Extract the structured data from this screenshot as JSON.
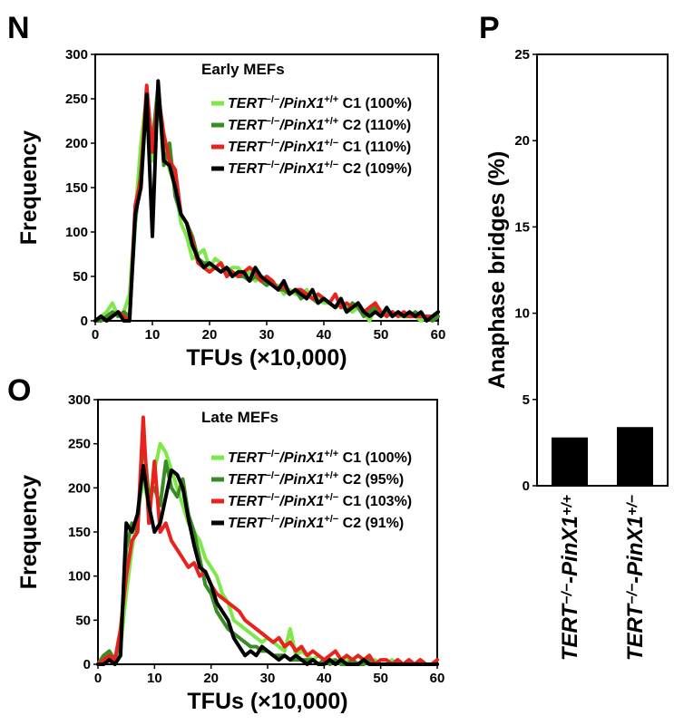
{
  "panels": {
    "N": "N",
    "O": "O",
    "P": "P"
  },
  "chart_data": [
    {
      "panel": "N",
      "type": "line",
      "title": "Early MEFs",
      "xlabel": "TFUs (×10,000)",
      "ylabel": "Frequency",
      "xlim": [
        0,
        60
      ],
      "ylim": [
        0,
        300
      ],
      "xticks": [
        0,
        10,
        20,
        30,
        40,
        50,
        60
      ],
      "yticks": [
        0,
        50,
        100,
        150,
        200,
        250,
        300
      ],
      "legend": "top-right",
      "series": [
        {
          "name": "TERT−/−/PinX1+/+ C1 (100%)",
          "gene1": "TERT",
          "sup1": "−/−",
          "gene2": "/PinX1",
          "sup2": "+/+",
          "rest": " C1 (100%)",
          "color": "#7ee84a",
          "x": [
            0,
            1,
            2,
            3,
            4,
            5,
            6,
            7,
            8,
            9,
            10,
            11,
            12,
            13,
            14,
            15,
            16,
            17,
            18,
            19,
            20,
            21,
            22,
            23,
            24,
            25,
            26,
            27,
            28,
            29,
            30,
            31,
            32,
            33,
            34,
            35,
            36,
            37,
            38,
            39,
            40,
            41,
            42,
            43,
            44,
            45,
            46,
            47,
            48,
            49,
            50,
            51,
            52,
            53,
            54,
            55,
            56,
            57,
            58,
            59,
            60
          ],
          "y": [
            0,
            5,
            10,
            20,
            5,
            10,
            30,
            120,
            200,
            255,
            180,
            260,
            200,
            170,
            150,
            110,
            95,
            70,
            75,
            80,
            60,
            70,
            65,
            55,
            60,
            60,
            50,
            55,
            45,
            50,
            45,
            40,
            40,
            30,
            35,
            30,
            30,
            35,
            25,
            25,
            20,
            20,
            15,
            20,
            15,
            10,
            15,
            10,
            0,
            15,
            10,
            5,
            10,
            5,
            5,
            5,
            5,
            0,
            5,
            0,
            5
          ]
        },
        {
          "name": "TERT−/−/PinX1+/+ C2 (110%)",
          "gene1": "TERT",
          "sup1": "−/−",
          "gene2": "/PinX1",
          "sup2": "+/+",
          "rest": " C2 (110%)",
          "color": "#3a8c26",
          "x": [
            0,
            1,
            2,
            3,
            4,
            5,
            6,
            7,
            8,
            9,
            10,
            11,
            12,
            13,
            14,
            15,
            16,
            17,
            18,
            19,
            20,
            21,
            22,
            23,
            24,
            25,
            26,
            27,
            28,
            29,
            30,
            31,
            32,
            33,
            34,
            35,
            36,
            37,
            38,
            39,
            40,
            41,
            42,
            43,
            44,
            45,
            46,
            47,
            48,
            49,
            50,
            51,
            52,
            53,
            54,
            55,
            56,
            57,
            58,
            59,
            60
          ],
          "y": [
            0,
            0,
            5,
            10,
            5,
            10,
            5,
            110,
            170,
            250,
            200,
            265,
            175,
            200,
            140,
            120,
            110,
            95,
            70,
            65,
            65,
            60,
            55,
            60,
            55,
            50,
            50,
            45,
            50,
            45,
            40,
            45,
            35,
            35,
            30,
            35,
            25,
            30,
            25,
            20,
            25,
            20,
            15,
            20,
            10,
            20,
            15,
            5,
            10,
            15,
            5,
            10,
            5,
            10,
            5,
            5,
            10,
            5,
            5,
            0,
            5
          ]
        },
        {
          "name": "TERT−/−/PinX1+/− C1 (110%)",
          "gene1": "TERT",
          "sup1": "−/−",
          "gene2": "/PinX1",
          "sup2": "+/−",
          "rest": " C1 (110%)",
          "color": "#e8231d",
          "x": [
            0,
            1,
            2,
            3,
            4,
            5,
            6,
            7,
            8,
            9,
            10,
            11,
            12,
            13,
            14,
            15,
            16,
            17,
            18,
            19,
            20,
            21,
            22,
            23,
            24,
            25,
            26,
            27,
            28,
            29,
            30,
            31,
            32,
            33,
            34,
            35,
            36,
            37,
            38,
            39,
            40,
            41,
            42,
            43,
            44,
            45,
            46,
            47,
            48,
            49,
            50,
            51,
            52,
            53,
            54,
            55,
            56,
            57,
            58,
            59,
            60
          ],
          "y": [
            0,
            5,
            0,
            5,
            10,
            5,
            0,
            130,
            160,
            265,
            190,
            255,
            210,
            180,
            170,
            120,
            110,
            90,
            65,
            60,
            55,
            60,
            65,
            50,
            55,
            50,
            55,
            60,
            55,
            45,
            50,
            45,
            35,
            40,
            30,
            35,
            35,
            30,
            25,
            30,
            25,
            20,
            30,
            15,
            20,
            15,
            20,
            10,
            15,
            20,
            10,
            5,
            10,
            5,
            10,
            5,
            5,
            5,
            5,
            5,
            10
          ]
        },
        {
          "name": "TERT−/−/PinX1+/− C2 (109%)",
          "gene1": "TERT",
          "sup1": "−/−",
          "gene2": "/PinX1",
          "sup2": "+/−",
          "rest": " C2 (109%)",
          "color": "#000000",
          "x": [
            0,
            1,
            2,
            3,
            4,
            5,
            6,
            7,
            8,
            9,
            10,
            11,
            12,
            13,
            14,
            15,
            16,
            17,
            18,
            19,
            20,
            21,
            22,
            23,
            24,
            25,
            26,
            27,
            28,
            29,
            30,
            31,
            32,
            33,
            34,
            35,
            36,
            37,
            38,
            39,
            40,
            41,
            42,
            43,
            44,
            45,
            46,
            47,
            48,
            49,
            50,
            51,
            52,
            53,
            54,
            55,
            56,
            57,
            58,
            59,
            60
          ],
          "y": [
            0,
            5,
            0,
            5,
            10,
            0,
            0,
            120,
            150,
            255,
            95,
            270,
            180,
            175,
            150,
            120,
            110,
            85,
            70,
            60,
            65,
            60,
            55,
            60,
            50,
            55,
            55,
            45,
            60,
            50,
            45,
            40,
            35,
            45,
            30,
            35,
            30,
            25,
            35,
            20,
            25,
            20,
            15,
            25,
            10,
            15,
            20,
            10,
            5,
            10,
            5,
            15,
            5,
            10,
            5,
            10,
            5,
            10,
            0,
            5,
            10
          ]
        }
      ]
    },
    {
      "panel": "O",
      "type": "line",
      "title": "Late MEFs",
      "xlabel": "TFUs (×10,000)",
      "ylabel": "Frequency",
      "xlim": [
        0,
        60
      ],
      "ylim": [
        0,
        300
      ],
      "xticks": [
        0,
        10,
        20,
        30,
        40,
        50,
        60
      ],
      "yticks": [
        0,
        50,
        100,
        150,
        200,
        250,
        300
      ],
      "legend": "top-right",
      "series": [
        {
          "name": "TERT−/−/PinX1+/+ C1 (100%)",
          "gene1": "TERT",
          "sup1": "−/−",
          "gene2": "/PinX1",
          "sup2": "+/+",
          "rest": " C1 (100%)",
          "color": "#7ee84a",
          "x": [
            0,
            1,
            2,
            3,
            4,
            5,
            6,
            7,
            8,
            9,
            10,
            11,
            12,
            13,
            14,
            15,
            16,
            17,
            18,
            19,
            20,
            21,
            22,
            23,
            24,
            25,
            26,
            27,
            28,
            29,
            30,
            31,
            32,
            33,
            34,
            35,
            36,
            37,
            38,
            39,
            40,
            41,
            42,
            43,
            44,
            45,
            46,
            47,
            48,
            49,
            50,
            51,
            52,
            53,
            54,
            55,
            56,
            57,
            58,
            59,
            60
          ],
          "y": [
            0,
            10,
            5,
            0,
            20,
            80,
            130,
            170,
            210,
            180,
            220,
            250,
            240,
            220,
            200,
            180,
            160,
            150,
            140,
            120,
            110,
            100,
            80,
            70,
            50,
            45,
            40,
            35,
            30,
            25,
            30,
            25,
            20,
            15,
            40,
            10,
            15,
            10,
            5,
            10,
            5,
            5,
            5,
            0,
            5,
            5,
            0,
            5,
            0,
            5,
            0,
            0,
            5,
            0,
            0,
            0,
            0,
            5,
            0,
            0,
            0
          ]
        },
        {
          "name": "TERT−/−/PinX1+/+ C2 (95%)",
          "gene1": "TERT",
          "sup1": "−/−",
          "gene2": "/PinX1",
          "sup2": "+/+",
          "rest": " C2 (95%)",
          "color": "#3a8c26",
          "x": [
            0,
            1,
            2,
            3,
            4,
            5,
            6,
            7,
            8,
            9,
            10,
            11,
            12,
            13,
            14,
            15,
            16,
            17,
            18,
            19,
            20,
            21,
            22,
            23,
            24,
            25,
            26,
            27,
            28,
            29,
            30,
            31,
            32,
            33,
            34,
            35,
            36,
            37,
            38,
            39,
            40,
            41,
            42,
            43,
            44,
            45,
            46,
            47,
            48,
            49,
            50,
            51,
            52,
            53,
            54,
            55,
            56,
            57,
            58,
            59,
            60
          ],
          "y": [
            0,
            10,
            15,
            5,
            30,
            130,
            160,
            150,
            260,
            190,
            200,
            180,
            230,
            200,
            190,
            210,
            170,
            150,
            120,
            90,
            80,
            60,
            50,
            40,
            35,
            30,
            25,
            20,
            20,
            15,
            15,
            10,
            10,
            10,
            5,
            5,
            5,
            5,
            5,
            0,
            5,
            0,
            5,
            0,
            0,
            5,
            0,
            0,
            5,
            0,
            0,
            0,
            0,
            0,
            0,
            0,
            0,
            0,
            0,
            0,
            0
          ]
        },
        {
          "name": "TERT−/−/PinX1+/− C1 (103%)",
          "gene1": "TERT",
          "sup1": "−/−",
          "gene2": "/PinX1",
          "sup2": "+/−",
          "rest": " C1 (103%)",
          "color": "#e8231d",
          "x": [
            0,
            1,
            2,
            3,
            4,
            5,
            6,
            7,
            8,
            9,
            10,
            11,
            12,
            13,
            14,
            15,
            16,
            17,
            18,
            19,
            20,
            21,
            22,
            23,
            24,
            25,
            26,
            27,
            28,
            29,
            30,
            31,
            32,
            33,
            34,
            35,
            36,
            37,
            38,
            39,
            40,
            41,
            42,
            43,
            44,
            45,
            46,
            47,
            48,
            49,
            50,
            51,
            52,
            53,
            54,
            55,
            56,
            57,
            58,
            59,
            60
          ],
          "y": [
            0,
            5,
            10,
            5,
            40,
            100,
            140,
            150,
            280,
            160,
            230,
            150,
            160,
            140,
            130,
            120,
            110,
            115,
            100,
            105,
            90,
            80,
            75,
            70,
            65,
            60,
            50,
            45,
            40,
            35,
            30,
            25,
            30,
            20,
            25,
            15,
            20,
            10,
            15,
            10,
            5,
            10,
            15,
            5,
            10,
            5,
            10,
            5,
            10,
            0,
            5,
            5,
            0,
            5,
            0,
            5,
            0,
            5,
            0,
            0,
            5
          ]
        },
        {
          "name": "TERT−/−/PinX1+/− C2 (91%)",
          "gene1": "TERT",
          "sup1": "−/−",
          "gene2": "/PinX1",
          "sup2": "+/−",
          "rest": " C2 (91%)",
          "color": "#000000",
          "x": [
            0,
            1,
            2,
            3,
            4,
            5,
            6,
            7,
            8,
            9,
            10,
            11,
            12,
            13,
            14,
            15,
            16,
            17,
            18,
            19,
            20,
            21,
            22,
            23,
            24,
            25,
            26,
            27,
            28,
            29,
            30,
            31,
            32,
            33,
            34,
            35,
            36,
            37,
            38,
            39,
            40,
            41,
            42,
            43,
            44,
            45,
            46,
            47,
            48,
            49,
            50,
            51,
            52,
            53,
            54,
            55,
            56,
            57,
            58,
            59,
            60
          ],
          "y": [
            0,
            0,
            5,
            0,
            10,
            160,
            150,
            170,
            225,
            180,
            150,
            160,
            190,
            220,
            215,
            200,
            165,
            135,
            110,
            105,
            90,
            70,
            60,
            50,
            30,
            20,
            10,
            15,
            10,
            20,
            15,
            10,
            5,
            10,
            5,
            10,
            5,
            0,
            5,
            0,
            0,
            5,
            0,
            5,
            0,
            0,
            0,
            5,
            0,
            0,
            0,
            0,
            0,
            0,
            0,
            0,
            0,
            0,
            0,
            0,
            0
          ]
        }
      ]
    },
    {
      "panel": "P",
      "type": "bar",
      "ylabel": "Anaphase bridges (%)",
      "ylim": [
        0,
        25
      ],
      "yticks": [
        0,
        5,
        10,
        15,
        20,
        25
      ],
      "categories": [
        {
          "gene1": "TERT",
          "sup1": "−/−",
          "gene2": "-PinX1",
          "sup2": "+/+"
        },
        {
          "gene1": "TERT",
          "sup1": "−/−",
          "gene2": "-PinX1",
          "sup2": "+/−"
        }
      ],
      "values": [
        2.8,
        3.4
      ],
      "color": "#000000"
    }
  ]
}
